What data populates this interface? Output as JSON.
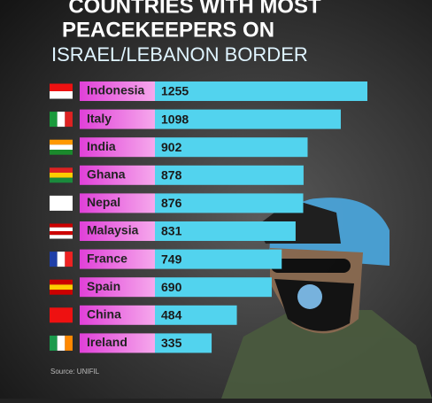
{
  "chart_data": {
    "type": "bar",
    "title": [
      "COUNTRIES WITH MOST",
      "PEACEKEEPERS ON"
    ],
    "subtitle": "ISRAEL/LEBANON BORDER",
    "categories": [
      "Indonesia",
      "Italy",
      "India",
      "Ghana",
      "Nepal",
      "Malaysia",
      "France",
      "Spain",
      "China",
      "Ireland"
    ],
    "values": [
      1255,
      1098,
      902,
      878,
      876,
      831,
      749,
      690,
      484,
      335
    ],
    "color": "#52d3ee",
    "source": "Source: UNIFIL"
  }
}
